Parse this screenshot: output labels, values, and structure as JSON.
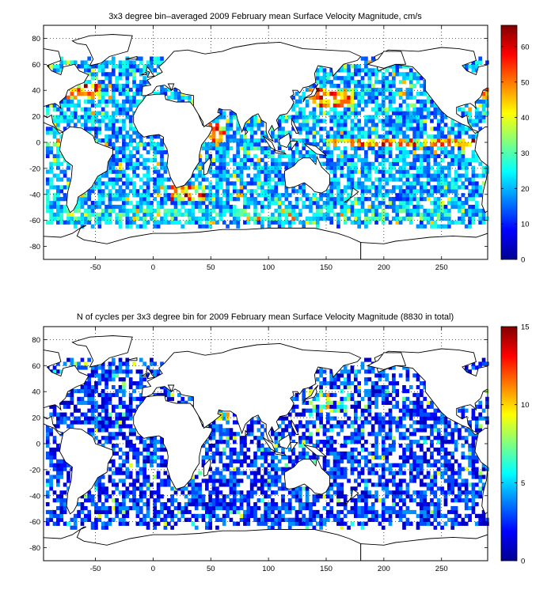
{
  "chart_data": [
    {
      "type": "heatmap",
      "title": "3x3 degree bin–averaged 2009 February mean Surface Velocity Magnitude, cm/s",
      "xlim": [
        -95,
        290
      ],
      "ylim": [
        -90,
        90
      ],
      "x_ticks": [
        "-50",
        "0",
        "50",
        "100",
        "150",
        "200",
        "250"
      ],
      "y_ticks": [
        "80",
        "60",
        "40",
        "20",
        "0",
        "-20",
        "-40",
        "-60",
        "-80"
      ],
      "grid": true,
      "bin_size_deg": 3,
      "colorbar": {
        "min": 0,
        "max": 66,
        "ticks": [
          "60",
          "50",
          "40",
          "30",
          "20",
          "10",
          "0"
        ],
        "colormap": "jet"
      },
      "data_summary": "Bins mostly 10-25 cm/s; maxima 45-66 cm/s along equatorial Pacific (~0 deg lat), Kuroshio (~35N 140-160E), Gulf Stream (~40N 60-70W), Agulhas (~40S 20-40E) and Somali current (~10N 50E)."
    },
    {
      "type": "heatmap",
      "title": "N of cycles per 3x3 degree bin for 2009 February mean Surface Velocity Magnitude (8830 in total)",
      "xlim": [
        -95,
        290
      ],
      "ylim": [
        -90,
        90
      ],
      "x_ticks": [
        "-50",
        "0",
        "50",
        "100",
        "150",
        "200",
        "250"
      ],
      "y_ticks": [
        "80",
        "60",
        "40",
        "20",
        "0",
        "-20",
        "-40",
        "-60",
        "-80"
      ],
      "grid": true,
      "bin_size_deg": 3,
      "colorbar": {
        "min": 0,
        "max": 15,
        "ticks": [
          "15",
          "10",
          "5",
          "0"
        ],
        "colormap": "jet"
      },
      "data_summary": "Most bins 1-5 cycles; highest counts (10-15) in NW Pacific near Japan (~30-40N 140-160E) and Arabian Sea (~20N 60E)."
    }
  ]
}
